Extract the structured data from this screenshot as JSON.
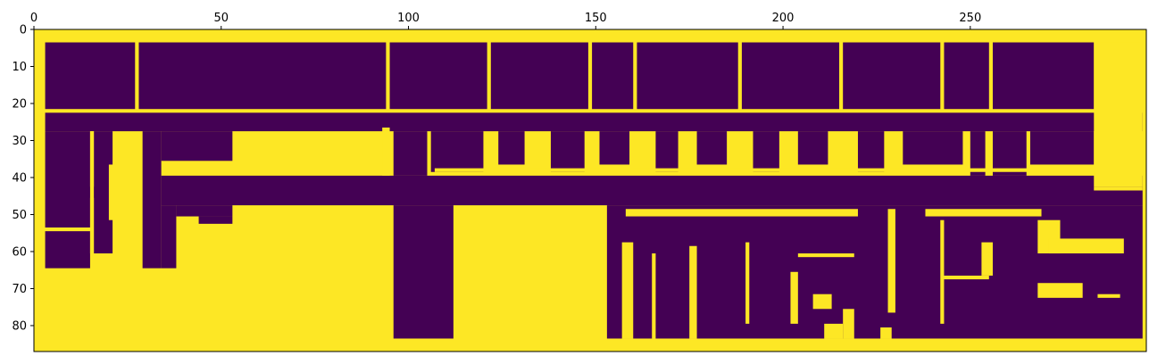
{
  "chart_data": {
    "type": "heatmap",
    "title": "",
    "xlabel": "",
    "ylabel": "",
    "xlim": [
      0,
      297
    ],
    "ylim": [
      87,
      0
    ],
    "x_ticks": [
      0,
      50,
      100,
      150,
      200,
      250
    ],
    "y_ticks": [
      0,
      10,
      20,
      30,
      40,
      50,
      60,
      70,
      80
    ],
    "x_tick_labels": [
      "0",
      "50",
      "100",
      "150",
      "200",
      "250"
    ],
    "y_tick_labels": [
      "0",
      "10",
      "20",
      "30",
      "40",
      "50",
      "60",
      "70",
      "80"
    ],
    "colormap": "viridis",
    "value_colors": {
      "0": "#440154",
      "1": "#fde725"
    },
    "background_value": 1,
    "grid": false,
    "legend": "none",
    "regions": [
      {
        "value": 0,
        "x": [
          3,
          27
        ],
        "y": [
          3.5,
          21.5
        ]
      },
      {
        "value": 0,
        "x": [
          28,
          94
        ],
        "y": [
          3.5,
          21.5
        ]
      },
      {
        "value": 0,
        "x": [
          95,
          121
        ],
        "y": [
          3.5,
          21.5
        ]
      },
      {
        "value": 0,
        "x": [
          122,
          148
        ],
        "y": [
          3.5,
          21.5
        ]
      },
      {
        "value": 0,
        "x": [
          149,
          160
        ],
        "y": [
          3.5,
          21.5
        ]
      },
      {
        "value": 0,
        "x": [
          161,
          188
        ],
        "y": [
          3.5,
          21.5
        ]
      },
      {
        "value": 0,
        "x": [
          189,
          215
        ],
        "y": [
          3.5,
          21.5
        ]
      },
      {
        "value": 0,
        "x": [
          216,
          242
        ],
        "y": [
          3.5,
          21.5
        ]
      },
      {
        "value": 0,
        "x": [
          243,
          255
        ],
        "y": [
          3.5,
          21.5
        ]
      },
      {
        "value": 0,
        "x": [
          256,
          283
        ],
        "y": [
          3.5,
          21.5
        ]
      },
      {
        "value": 0,
        "x": [
          3,
          296
        ],
        "y": [
          22.5,
          27.5
        ]
      },
      {
        "value": 0,
        "x": [
          3,
          15
        ],
        "y": [
          27.5,
          53.5
        ]
      },
      {
        "value": 0,
        "x": [
          3,
          15
        ],
        "y": [
          54.5,
          64.5
        ]
      },
      {
        "value": 0,
        "x": [
          16,
          21
        ],
        "y": [
          27.5,
          60.5
        ]
      },
      {
        "value": 0,
        "x": [
          29,
          34
        ],
        "y": [
          27.5,
          64.5
        ]
      },
      {
        "value": 0,
        "x": [
          34,
          53
        ],
        "y": [
          27.5,
          35.5
        ]
      },
      {
        "value": 0,
        "x": [
          34,
          296
        ],
        "y": [
          39.5,
          47.5
        ]
      },
      {
        "value": 0,
        "x": [
          34,
          38
        ],
        "y": [
          47.5,
          64.5
        ]
      },
      {
        "value": 0,
        "x": [
          38,
          53
        ],
        "y": [
          47.5,
          50.5
        ]
      },
      {
        "value": 0,
        "x": [
          44,
          53
        ],
        "y": [
          50.5,
          52.5
        ]
      },
      {
        "value": 0,
        "x": [
          96,
          105
        ],
        "y": [
          27.5,
          39.5
        ]
      },
      {
        "value": 0,
        "x": [
          106,
          120
        ],
        "y": [
          27.5,
          38.5
        ]
      },
      {
        "value": 0,
        "x": [
          124,
          131
        ],
        "y": [
          27.5,
          36.5
        ]
      },
      {
        "value": 0,
        "x": [
          138,
          147
        ],
        "y": [
          27.5,
          38.5
        ]
      },
      {
        "value": 0,
        "x": [
          151,
          159
        ],
        "y": [
          27.5,
          36.5
        ]
      },
      {
        "value": 0,
        "x": [
          166,
          172
        ],
        "y": [
          27.5,
          38.5
        ]
      },
      {
        "value": 0,
        "x": [
          177,
          185
        ],
        "y": [
          27.5,
          36.5
        ]
      },
      {
        "value": 0,
        "x": [
          192,
          199
        ],
        "y": [
          27.5,
          38.5
        ]
      },
      {
        "value": 0,
        "x": [
          204,
          212
        ],
        "y": [
          27.5,
          36.5
        ]
      },
      {
        "value": 0,
        "x": [
          220,
          227
        ],
        "y": [
          27.5,
          38.5
        ]
      },
      {
        "value": 0,
        "x": [
          232,
          248
        ],
        "y": [
          27.5,
          36.5
        ]
      },
      {
        "value": 0,
        "x": [
          250,
          254
        ],
        "y": [
          27.5,
          39.5
        ]
      },
      {
        "value": 0,
        "x": [
          256,
          265
        ],
        "y": [
          27.5,
          39.5
        ]
      },
      {
        "value": 0,
        "x": [
          266,
          283
        ],
        "y": [
          27.5,
          36.5
        ]
      },
      {
        "value": 0,
        "x": [
          96,
          112
        ],
        "y": [
          47.5,
          83.5
        ]
      },
      {
        "value": 0,
        "x": [
          153,
          296
        ],
        "y": [
          47.5,
          83.5
        ]
      }
    ],
    "walls": [
      {
        "value": 1,
        "x": [
          15,
          16
        ],
        "y": [
          27.5,
          42.5
        ]
      },
      {
        "value": 1,
        "x": [
          15,
          16
        ],
        "y": [
          45.5,
          60.5
        ]
      },
      {
        "value": 1,
        "x": [
          20,
          22
        ],
        "y": [
          36.5,
          51.5
        ]
      },
      {
        "value": 1,
        "x": [
          93,
          95
        ],
        "y": [
          26.5,
          39.5
        ]
      },
      {
        "value": 1,
        "x": [
          107,
          283
        ],
        "y": [
          37.5,
          38.5
        ]
      },
      {
        "value": 1,
        "x": [
          283,
          296
        ],
        "y": [
          3.5,
          42.5
        ]
      },
      {
        "value": 1,
        "x": [
          157,
          160
        ],
        "y": [
          57.5,
          83.5
        ]
      },
      {
        "value": 1,
        "x": [
          165,
          166
        ],
        "y": [
          60.5,
          83.5
        ]
      },
      {
        "value": 1,
        "x": [
          175,
          177
        ],
        "y": [
          58.5,
          83.5
        ]
      },
      {
        "value": 1,
        "x": [
          190,
          191
        ],
        "y": [
          57.5,
          79.5
        ]
      },
      {
        "value": 1,
        "x": [
          202,
          204
        ],
        "y": [
          65.5,
          79.5
        ]
      },
      {
        "value": 1,
        "x": [
          204,
          219
        ],
        "y": [
          60.5,
          61.5
        ]
      },
      {
        "value": 1,
        "x": [
          208,
          213
        ],
        "y": [
          71.5,
          75.5
        ]
      },
      {
        "value": 1,
        "x": [
          211,
          216
        ],
        "y": [
          79.5,
          83.5
        ]
      },
      {
        "value": 1,
        "x": [
          216,
          219
        ],
        "y": [
          75.5,
          83.5
        ]
      },
      {
        "value": 1,
        "x": [
          228,
          230
        ],
        "y": [
          48.5,
          76.5
        ]
      },
      {
        "value": 1,
        "x": [
          226,
          229
        ],
        "y": [
          80.5,
          83.5
        ]
      },
      {
        "value": 1,
        "x": [
          242,
          243
        ],
        "y": [
          51.5,
          79.5
        ]
      },
      {
        "value": 1,
        "x": [
          243,
          255
        ],
        "y": [
          66.5,
          67.5
        ]
      },
      {
        "value": 1,
        "x": [
          253,
          256
        ],
        "y": [
          57.5,
          66.5
        ]
      },
      {
        "value": 1,
        "x": [
          268,
          274
        ],
        "y": [
          51.5,
          60.5
        ]
      },
      {
        "value": 1,
        "x": [
          271,
          291
        ],
        "y": [
          56.5,
          60.5
        ]
      },
      {
        "value": 1,
        "x": [
          268,
          280
        ],
        "y": [
          68.5,
          72.5
        ]
      },
      {
        "value": 1,
        "x": [
          284,
          290
        ],
        "y": [
          71.5,
          72.5
        ]
      },
      {
        "value": 1,
        "x": [
          158,
          220
        ],
        "y": [
          48.5,
          50.5
        ]
      },
      {
        "value": 1,
        "x": [
          238,
          269
        ],
        "y": [
          48.5,
          50.5
        ]
      },
      {
        "value": 1,
        "x": [
          283,
          296
        ],
        "y": [
          42.5,
          43.5
        ]
      }
    ]
  }
}
